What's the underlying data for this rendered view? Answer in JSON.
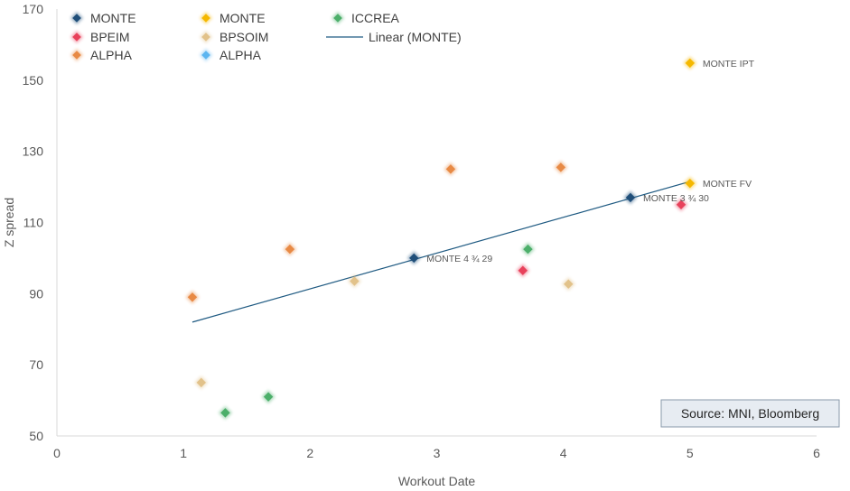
{
  "chart_data": {
    "type": "scatter",
    "xlabel": "Workout Date",
    "ylabel": "Z spread",
    "xlim": [
      0,
      6
    ],
    "ylim": [
      50,
      170
    ],
    "x_ticks": [
      0,
      1,
      2,
      3,
      4,
      5,
      6
    ],
    "y_ticks": [
      50,
      70,
      90,
      110,
      130,
      150,
      170
    ],
    "grid": false,
    "legend_position": "top-left",
    "series": [
      {
        "name": "MONTE",
        "color": "#1F4E79",
        "points": [
          [
            2.82,
            100
          ],
          [
            4.53,
            117
          ]
        ]
      },
      {
        "name": "BPEIM",
        "color": "#E8415B",
        "points": [
          [
            3.68,
            96.5
          ],
          [
            4.93,
            115
          ]
        ]
      },
      {
        "name": "ALPHA",
        "color": "#E88A45",
        "points": [
          [
            1.07,
            89
          ],
          [
            1.84,
            102.5
          ],
          [
            3.11,
            125
          ],
          [
            3.98,
            125.5
          ]
        ]
      },
      {
        "name": "MONTE",
        "color": "#F5B800",
        "points": [
          [
            5.0,
            121
          ],
          [
            5.0,
            154.8
          ]
        ]
      },
      {
        "name": "BPSOIM",
        "color": "#E2C28A",
        "points": [
          [
            1.14,
            65
          ],
          [
            2.35,
            93.5
          ],
          [
            4.04,
            92.7
          ]
        ]
      },
      {
        "name": "ALPHA",
        "color": "#5BB5F0",
        "points": []
      },
      {
        "name": "ICCREA",
        "color": "#4CAF6A",
        "points": [
          [
            1.33,
            56.5
          ],
          [
            1.67,
            61
          ],
          [
            3.72,
            102.5
          ]
        ]
      }
    ],
    "trendline": {
      "name": "Linear (MONTE)",
      "color": "#1F5A82",
      "x": [
        1.07,
        5.0
      ],
      "y": [
        82,
        121.5
      ]
    },
    "annotations": [
      {
        "text": "MONTE 4 ¾ 29",
        "x": 2.82,
        "y": 100
      },
      {
        "text": "MONTE 3 ¾ 30",
        "x": 4.53,
        "y": 117
      },
      {
        "text": "MONTE FV",
        "x": 5.0,
        "y": 121
      },
      {
        "text": "MONTE IPT",
        "x": 5.0,
        "y": 154.8
      }
    ]
  },
  "source_box": {
    "text": "Source: MNI, Bloomberg"
  }
}
